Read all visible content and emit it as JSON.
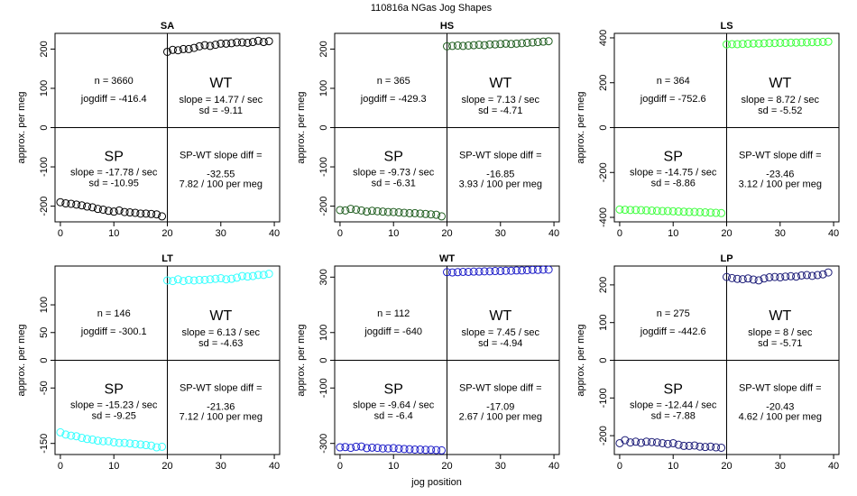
{
  "page_title": "110816a   NGas Jog Shapes",
  "common": {
    "xlabel": "jog position",
    "ylabel": "approx. per meg",
    "x_ticks": [
      "0",
      "10",
      "20",
      "30",
      "40"
    ],
    "wt_label": "WT",
    "sp_label": "SP",
    "diff_label": "SP-WT slope diff ="
  },
  "chart_data": [
    {
      "type": "scatter",
      "title": "SA",
      "color": "#000000",
      "ylim": [
        -240,
        240
      ],
      "y_ticks": [
        {
          "value": 200,
          "label": "200"
        },
        {
          "value": 100,
          "label": "100"
        },
        {
          "value": 0,
          "label": "0"
        },
        {
          "value": -100,
          "label": "-100"
        },
        {
          "value": -200,
          "label": "-200"
        }
      ],
      "sp_x": [
        0,
        1,
        2,
        3,
        4,
        5,
        6,
        7,
        8,
        9,
        10,
        11,
        12,
        13,
        14,
        15,
        16,
        17,
        18,
        19
      ],
      "sp_y": [
        -190,
        -193,
        -194,
        -196,
        -198,
        -201,
        -203,
        -207,
        -209,
        -212,
        -214,
        -211,
        -215,
        -216,
        -217,
        -219,
        -219,
        -220,
        -221,
        -226
      ],
      "wt_x": [
        20,
        21,
        22,
        23,
        24,
        25,
        26,
        27,
        28,
        29,
        30,
        31,
        32,
        33,
        34,
        35,
        36,
        37,
        38,
        39
      ],
      "wt_y": [
        193,
        198,
        197,
        200,
        200,
        203,
        207,
        210,
        208,
        211,
        214,
        214,
        215,
        217,
        217,
        216,
        218,
        221,
        218,
        220
      ],
      "stats": {
        "n": "n = 3660",
        "jogdiff": "jogdiff = -416.4",
        "wt_slope": "slope = 14.77 / sec",
        "wt_sd": "sd = -9.11",
        "sp_slope": "slope = -17.78 / sec",
        "sp_sd": "sd = -10.95",
        "diff_value": "-32.55",
        "diff_rate": "7.82 / 100 per meg"
      }
    },
    {
      "type": "scatter",
      "title": "HS",
      "color": "#1e5c1e",
      "ylim": [
        -240,
        240
      ],
      "y_ticks": [
        {
          "value": 200,
          "label": "200"
        },
        {
          "value": 100,
          "label": "100"
        },
        {
          "value": 0,
          "label": "0"
        },
        {
          "value": -100,
          "label": "-100"
        },
        {
          "value": -200,
          "label": "-200"
        }
      ],
      "sp_x": [
        0,
        1,
        2,
        3,
        4,
        5,
        6,
        7,
        8,
        9,
        10,
        11,
        12,
        13,
        14,
        15,
        16,
        17,
        18,
        19
      ],
      "sp_y": [
        -210,
        -211,
        -207,
        -209,
        -211,
        -214,
        -212,
        -213,
        -214,
        -215,
        -215,
        -216,
        -217,
        -218,
        -218,
        -219,
        -220,
        -221,
        -222,
        -226
      ],
      "wt_x": [
        20,
        21,
        22,
        23,
        24,
        25,
        26,
        27,
        28,
        29,
        30,
        31,
        32,
        33,
        34,
        35,
        36,
        37,
        38,
        39
      ],
      "wt_y": [
        207,
        208,
        209,
        208,
        209,
        210,
        211,
        210,
        212,
        212,
        213,
        214,
        213,
        214,
        215,
        216,
        217,
        218,
        219,
        220
      ],
      "stats": {
        "n": "n = 365",
        "jogdiff": "jogdiff = -429.3",
        "wt_slope": "slope = 7.13 / sec",
        "wt_sd": "sd = -4.71",
        "sp_slope": "slope = -9.73 / sec",
        "sp_sd": "sd = -6.31",
        "diff_value": "-16.85",
        "diff_rate": "3.93 / 100 per meg"
      }
    },
    {
      "type": "scatter",
      "title": "LS",
      "color": "#3cff3c",
      "ylim": [
        -420,
        420
      ],
      "y_ticks": [
        {
          "value": 400,
          "label": "400"
        },
        {
          "value": 200,
          "label": "200"
        },
        {
          "value": 0,
          "label": "0"
        },
        {
          "value": -200,
          "label": "-200"
        },
        {
          "value": -400,
          "label": "-400"
        }
      ],
      "sp_x": [
        0,
        1,
        2,
        3,
        4,
        5,
        6,
        7,
        8,
        9,
        10,
        11,
        12,
        13,
        14,
        15,
        16,
        17,
        18,
        19
      ],
      "sp_y": [
        -365,
        -366,
        -367,
        -367,
        -368,
        -369,
        -370,
        -371,
        -372,
        -372,
        -373,
        -374,
        -375,
        -376,
        -376,
        -377,
        -378,
        -379,
        -380,
        -381
      ],
      "wt_x": [
        20,
        21,
        22,
        23,
        24,
        25,
        26,
        27,
        28,
        29,
        30,
        31,
        32,
        33,
        34,
        35,
        36,
        37,
        38,
        39
      ],
      "wt_y": [
        371,
        372,
        372,
        373,
        374,
        375,
        375,
        376,
        377,
        377,
        378,
        378,
        379,
        379,
        380,
        380,
        381,
        381,
        382,
        383
      ],
      "stats": {
        "n": "n = 364",
        "jogdiff": "jogdiff = -752.6",
        "wt_slope": "slope = 8.72 / sec",
        "wt_sd": "sd = -5.52",
        "sp_slope": "slope = -14.75 / sec",
        "sp_sd": "sd = -8.86",
        "diff_value": "-23.46",
        "diff_rate": "3.12 / 100 per meg"
      }
    },
    {
      "type": "scatter",
      "title": "LT",
      "color": "#33ffff",
      "ylim": [
        -170,
        170
      ],
      "y_ticks": [
        {
          "value": 100,
          "label": "100"
        },
        {
          "value": 50,
          "label": "50"
        },
        {
          "value": 0,
          "label": "0"
        },
        {
          "value": -50,
          "label": "-50"
        },
        {
          "value": -150,
          "label": "-150"
        }
      ],
      "sp_x": [
        0,
        1,
        2,
        3,
        4,
        5,
        6,
        7,
        8,
        9,
        10,
        11,
        12,
        13,
        14,
        15,
        16,
        17,
        18,
        19
      ],
      "sp_y": [
        -130,
        -134,
        -136,
        -137,
        -140,
        -142,
        -143,
        -145,
        -146,
        -146,
        -148,
        -149,
        -149,
        -150,
        -151,
        -152,
        -153,
        -154,
        -157,
        -156
      ],
      "wt_x": [
        20,
        21,
        22,
        23,
        24,
        25,
        26,
        27,
        28,
        29,
        30,
        31,
        32,
        33,
        34,
        35,
        36,
        37,
        38,
        39
      ],
      "wt_y": [
        144,
        143,
        146,
        143,
        145,
        144,
        145,
        145,
        146,
        147,
        148,
        146,
        147,
        149,
        152,
        151,
        152,
        154,
        154,
        156
      ],
      "stats": {
        "n": "n = 146",
        "jogdiff": "jogdiff = -300.1",
        "wt_slope": "slope = 6.13 / sec",
        "wt_sd": "sd = -4.63",
        "sp_slope": "slope = -15.23 / sec",
        "sp_sd": "sd = -9.25",
        "diff_value": "-21.36",
        "diff_rate": "7.12 / 100 per meg"
      }
    },
    {
      "type": "scatter",
      "title": "WT",
      "color": "#1c1cc8",
      "ylim": [
        -340,
        340
      ],
      "y_ticks": [
        {
          "value": 300,
          "label": "300"
        },
        {
          "value": 100,
          "label": "100"
        },
        {
          "value": 0,
          "label": "0"
        },
        {
          "value": -100,
          "label": "-100"
        },
        {
          "value": -300,
          "label": "-300"
        }
      ],
      "sp_x": [
        0,
        1,
        2,
        3,
        4,
        5,
        6,
        7,
        8,
        9,
        10,
        11,
        12,
        13,
        14,
        15,
        16,
        17,
        18,
        19
      ],
      "sp_y": [
        -314,
        -313,
        -316,
        -312,
        -311,
        -317,
        -315,
        -316,
        -318,
        -318,
        -317,
        -319,
        -320,
        -321,
        -322,
        -322,
        -323,
        -323,
        -324,
        -325
      ],
      "wt_x": [
        20,
        21,
        22,
        23,
        24,
        25,
        26,
        27,
        28,
        29,
        30,
        31,
        32,
        33,
        34,
        35,
        36,
        37,
        38,
        39
      ],
      "wt_y": [
        318,
        317,
        318,
        319,
        319,
        320,
        320,
        321,
        321,
        322,
        322,
        323,
        323,
        324,
        324,
        325,
        326,
        326,
        327,
        327
      ],
      "stats": {
        "n": "n = 112",
        "jogdiff": "jogdiff = -640",
        "wt_slope": "slope = 7.45 / sec",
        "wt_sd": "sd = -4.94",
        "sp_slope": "slope = -9.64 / sec",
        "sp_sd": "sd = -6.4",
        "diff_value": "-17.09",
        "diff_rate": "2.67 / 100 per meg"
      }
    },
    {
      "type": "scatter",
      "title": "LP",
      "color": "#1c1c78",
      "ylim": [
        -250,
        250
      ],
      "y_ticks": [
        {
          "value": 200,
          "label": "200"
        },
        {
          "value": 100,
          "label": "100"
        },
        {
          "value": 0,
          "label": "0"
        },
        {
          "value": -100,
          "label": "-100"
        },
        {
          "value": -200,
          "label": "-200"
        }
      ],
      "sp_x": [
        0,
        1,
        2,
        3,
        4,
        5,
        6,
        7,
        8,
        9,
        10,
        11,
        12,
        13,
        14,
        15,
        16,
        17,
        18,
        19
      ],
      "sp_y": [
        -220,
        -212,
        -218,
        -216,
        -219,
        -216,
        -217,
        -218,
        -220,
        -222,
        -220,
        -224,
        -227,
        -227,
        -226,
        -229,
        -230,
        -229,
        -231,
        -232
      ],
      "wt_x": [
        20,
        21,
        22,
        23,
        24,
        25,
        26,
        27,
        28,
        29,
        30,
        31,
        32,
        33,
        34,
        35,
        36,
        37,
        38,
        39
      ],
      "wt_y": [
        221,
        218,
        216,
        215,
        217,
        214,
        212,
        217,
        220,
        221,
        220,
        222,
        223,
        222,
        225,
        226,
        224,
        226,
        228,
        233
      ],
      "stats": {
        "n": "n = 275",
        "jogdiff": "jogdiff = -442.6",
        "wt_slope": "slope = 8 / sec",
        "wt_sd": "sd = -5.71",
        "sp_slope": "slope = -12.44 / sec",
        "sp_sd": "sd = -7.88",
        "diff_value": "-20.43",
        "diff_rate": "4.62 / 100 per meg"
      }
    }
  ]
}
